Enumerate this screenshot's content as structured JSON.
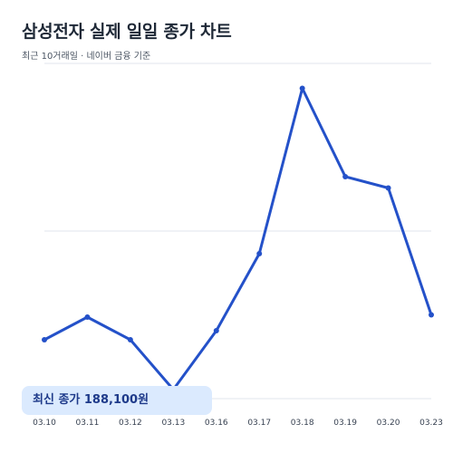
{
  "header": {
    "title": "삼성전자 실제 일일 종가 차트",
    "subtitle": "최근 10거래일 · 네이버 금융 기준"
  },
  "badge": {
    "label": "최신 종가 188,100원"
  },
  "colors": {
    "line": "#2451c9",
    "grid": "#e2e6ee",
    "badge_bg": "#dbeafe",
    "badge_text": "#1e3a8a"
  },
  "chart_data": {
    "type": "line",
    "title": "삼성전자 실제 일일 종가 차트",
    "subtitle": "최근 10거래일 · 네이버 금융 기준",
    "xlabel": "",
    "ylabel": "",
    "categories": [
      "03.10",
      "03.11",
      "03.12",
      "03.13",
      "03.16",
      "03.17",
      "03.18",
      "03.19",
      "03.20",
      "03.23"
    ],
    "series": [
      {
        "values": [
          187000,
          188000,
          187000,
          184800,
          187400,
          190800,
          198100,
          194200,
          193700,
          188100
        ]
      }
    ],
    "ylim": [
      184400,
      199200
    ],
    "grid": true,
    "legend": "none"
  }
}
